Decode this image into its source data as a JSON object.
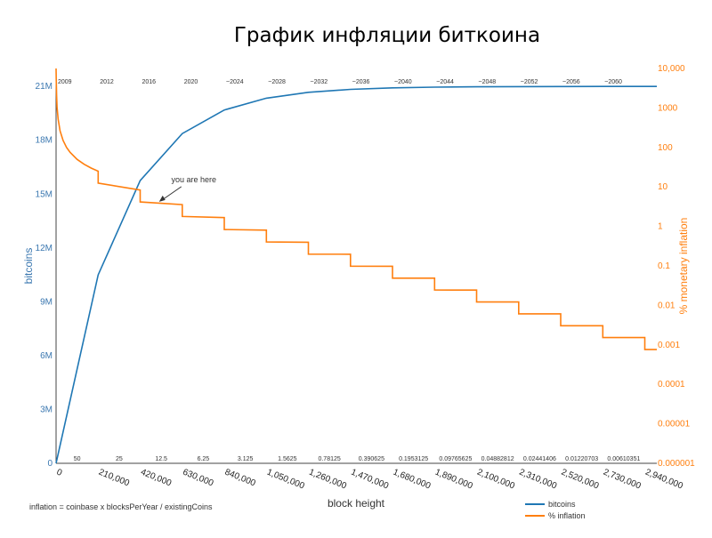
{
  "chart_data": {
    "type": "line",
    "title": "График инфляции биткоина",
    "xlabel": "block height",
    "ylabel_left": "bitcoins",
    "ylabel_right": "% monetary inflation",
    "xlim": [
      0,
      3000000
    ],
    "ylim_left": [
      0,
      22000000
    ],
    "ylim_right_log10": [
      -6,
      4
    ],
    "x_ticks": [
      {
        "value": 0,
        "label": "0"
      },
      {
        "value": 210000,
        "label": "210,000"
      },
      {
        "value": 420000,
        "label": "420,000"
      },
      {
        "value": 630000,
        "label": "630,000"
      },
      {
        "value": 840000,
        "label": "840,000"
      },
      {
        "value": 1050000,
        "label": "1,050,000"
      },
      {
        "value": 1260000,
        "label": "1,260,000"
      },
      {
        "value": 1470000,
        "label": "1,470,000"
      },
      {
        "value": 1680000,
        "label": "1,680,000"
      },
      {
        "value": 1890000,
        "label": "1,890,000"
      },
      {
        "value": 2100000,
        "label": "2,100,000"
      },
      {
        "value": 2310000,
        "label": "2,310,000"
      },
      {
        "value": 2520000,
        "label": "2,520,000"
      },
      {
        "value": 2730000,
        "label": "2,730,000"
      },
      {
        "value": 2940000,
        "label": "2,940,000"
      }
    ],
    "y_left_ticks": [
      {
        "value": 0,
        "label": "0"
      },
      {
        "value": 3000000,
        "label": "3M"
      },
      {
        "value": 6000000,
        "label": "6M"
      },
      {
        "value": 9000000,
        "label": "9M"
      },
      {
        "value": 12000000,
        "label": "12M"
      },
      {
        "value": 15000000,
        "label": "15M"
      },
      {
        "value": 18000000,
        "label": "18M"
      },
      {
        "value": 21000000,
        "label": "21M"
      }
    ],
    "y_right_ticks": [
      {
        "value": 10000,
        "label": "10,000"
      },
      {
        "value": 1000,
        "label": "1000"
      },
      {
        "value": 100,
        "label": "100"
      },
      {
        "value": 10,
        "label": "10"
      },
      {
        "value": 1,
        "label": "1"
      },
      {
        "value": 0.1,
        "label": "0.1"
      },
      {
        "value": 0.01,
        "label": "0.01"
      },
      {
        "value": 0.001,
        "label": "0.001"
      },
      {
        "value": 0.0001,
        "label": "0.0001"
      },
      {
        "value": 1e-05,
        "label": "0.00001"
      },
      {
        "value": 1e-06,
        "label": "0.000001"
      }
    ],
    "year_labels": [
      {
        "x": 0,
        "label": "2009"
      },
      {
        "x": 210000,
        "label": "2012"
      },
      {
        "x": 420000,
        "label": "2016"
      },
      {
        "x": 630000,
        "label": "2020"
      },
      {
        "x": 840000,
        "label": "~2024"
      },
      {
        "x": 1050000,
        "label": "~2028"
      },
      {
        "x": 1260000,
        "label": "~2032"
      },
      {
        "x": 1470000,
        "label": "~2036"
      },
      {
        "x": 1680000,
        "label": "~2040"
      },
      {
        "x": 1890000,
        "label": "~2044"
      },
      {
        "x": 2100000,
        "label": "~2048"
      },
      {
        "x": 2310000,
        "label": "~2052"
      },
      {
        "x": 2520000,
        "label": "~2056"
      },
      {
        "x": 2730000,
        "label": "~2060"
      }
    ],
    "reward_labels": [
      "50",
      "25",
      "12.5",
      "6.25",
      "3.125",
      "1.5625",
      "0.78125",
      "0.390625",
      "0.1953125",
      "0.09765625",
      "0.04882812",
      "0.02441406",
      "0.01220703",
      "0.00610351"
    ],
    "series": [
      {
        "name": "bitcoins",
        "color": "#1f77b4",
        "x": [
          0,
          210000,
          420000,
          630000,
          840000,
          1050000,
          1260000,
          1470000,
          1680000,
          1890000,
          2100000,
          2310000,
          2520000,
          2730000,
          3000000
        ],
        "y": [
          0,
          10500000,
          15750000,
          18375000,
          19687500,
          20343750,
          20671875,
          20835937,
          20917968,
          20958984,
          20979492,
          20989746,
          20994873,
          20997436,
          21000000
        ]
      },
      {
        "name": "% inflation",
        "color": "#ff7f0e",
        "curve_x": [
          0,
          1000,
          2500,
          5000,
          10000,
          20000,
          35000,
          52500,
          70000,
          105000,
          140000,
          175000,
          210000
        ],
        "curve_y": [
          10000,
          5256,
          2103,
          1051,
          526,
          263,
          150,
          100,
          75.1,
          50,
          37.6,
          30,
          25
        ],
        "steps": [
          {
            "x0": 210000,
            "x1": 420000,
            "y0": 12.5,
            "y1": 8.33
          },
          {
            "x0": 420000,
            "x1": 630000,
            "y0": 4.17,
            "y1": 3.57
          },
          {
            "x0": 630000,
            "x1": 840000,
            "y0": 1.79,
            "y1": 1.67
          },
          {
            "x0": 840000,
            "x1": 1050000,
            "y0": 0.833,
            "y1": 0.806
          },
          {
            "x0": 1050000,
            "x1": 1260000,
            "y0": 0.403,
            "y1": 0.397
          },
          {
            "x0": 1260000,
            "x1": 1470000,
            "y0": 0.198,
            "y1": 0.197
          },
          {
            "x0": 1470000,
            "x1": 1680000,
            "y0": 0.0984,
            "y1": 0.098
          },
          {
            "x0": 1680000,
            "x1": 1890000,
            "y0": 0.049,
            "y1": 0.0489
          },
          {
            "x0": 1890000,
            "x1": 2100000,
            "y0": 0.0245,
            "y1": 0.0244
          },
          {
            "x0": 2100000,
            "x1": 2310000,
            "y0": 0.0122,
            "y1": 0.0122
          },
          {
            "x0": 2310000,
            "x1": 2520000,
            "y0": 0.0061,
            "y1": 0.0061
          },
          {
            "x0": 2520000,
            "x1": 2730000,
            "y0": 0.00305,
            "y1": 0.00305
          },
          {
            "x0": 2730000,
            "x1": 2940000,
            "y0": 0.00153,
            "y1": 0.00153
          },
          {
            "x0": 2940000,
            "x1": 3000000,
            "y0": 0.00076,
            "y1": 0.00076
          }
        ]
      }
    ],
    "annotation": {
      "text": "you are here",
      "x": 510000,
      "y_right": 4.0
    },
    "formula": "inflation = coinbase x blocksPerYear / existingCoins",
    "legend": [
      {
        "label": "bitcoins",
        "color": "#1f77b4"
      },
      {
        "label": "% inflation",
        "color": "#ff7f0e"
      }
    ]
  }
}
